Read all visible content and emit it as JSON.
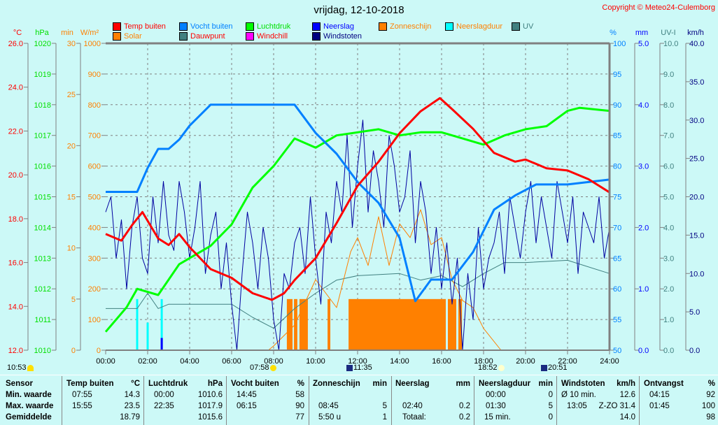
{
  "title": "vrijdag, 12-10-2018",
  "copyright": "Copyright © Meteo24-Culemborg",
  "legend": [
    {
      "label": "Temp buiten",
      "color": "#ff0000",
      "text_color": "#ff0000"
    },
    {
      "label": "Vocht buiten",
      "color": "#0080ff",
      "text_color": "#0080ff"
    },
    {
      "label": "Luchtdruk",
      "color": "#00ff00",
      "text_color": "#00e000"
    },
    {
      "label": "Neerslag",
      "color": "#0000ff",
      "text_color": "#0000ff"
    },
    {
      "label": "Zonneschijn",
      "color": "#ff8000",
      "text_color": "#ff8000"
    },
    {
      "label": "Neerslagduur",
      "color": "#00ffff",
      "text_color": "#ff8000"
    },
    {
      "label": "UV",
      "color": "#408080",
      "text_color": "#408080"
    },
    {
      "label": "Solar",
      "color": "#ff8000",
      "text_color": "#ff8000"
    },
    {
      "label": "Dauwpunt",
      "color": "#408080",
      "text_color": "#ff0000"
    },
    {
      "label": "Windchill",
      "color": "#ff00ff",
      "text_color": "#ff0000"
    },
    {
      "label": "Windstoten",
      "color": "#000080",
      "text_color": "#000080"
    }
  ],
  "axes_units": {
    "temp": "°C",
    "press": "hPa",
    "min": "min",
    "solar": "W/m²",
    "hum": "%",
    "rain": "mm",
    "uv": "UV-I",
    "wind": "km/h"
  },
  "astro": [
    {
      "time": "10:53",
      "icon": "moonset-icon"
    },
    {
      "time": "07:58",
      "icon": "sunrise-icon"
    },
    {
      "time": "11:35",
      "icon": "moonrise-icon"
    },
    {
      "time": "18:52",
      "icon": "sunset-icon"
    },
    {
      "time": "20:51",
      "icon": "moon-icon"
    }
  ],
  "chart_data": {
    "type": "line",
    "title": "vrijdag, 12-10-2018",
    "x_ticks": [
      "00:00",
      "02:00",
      "04:00",
      "06:00",
      "08:00",
      "10:00",
      "12:00",
      "14:00",
      "16:00",
      "18:00",
      "20:00",
      "22:00",
      "24:00"
    ],
    "xlim": [
      0,
      24
    ],
    "grid": true,
    "legend_placement": "top",
    "axes": {
      "temp": {
        "range": [
          12,
          26
        ],
        "ticks": [
          "12.0",
          "14.0",
          "16.0",
          "18.0",
          "20.0",
          "22.0",
          "24.0",
          "26.0"
        ]
      },
      "press": {
        "range": [
          1010,
          1020
        ],
        "ticks": [
          "1010",
          "1011",
          "1012",
          "1013",
          "1014",
          "1015",
          "1016",
          "1017",
          "1018",
          "1019",
          "1020"
        ]
      },
      "min": {
        "range": [
          0,
          30
        ],
        "ticks": [
          "0",
          "5",
          "10",
          "15",
          "20",
          "25",
          "30"
        ]
      },
      "solar": {
        "range": [
          0,
          1000
        ],
        "ticks": [
          "0",
          "100",
          "200",
          "300",
          "400",
          "500",
          "600",
          "700",
          "800",
          "900",
          "1000"
        ]
      },
      "hum": {
        "range": [
          50,
          100
        ],
        "ticks": [
          "50",
          "55",
          "60",
          "65",
          "70",
          "75",
          "80",
          "85",
          "90",
          "95",
          "100"
        ]
      },
      "rain": {
        "range": [
          0,
          5
        ],
        "ticks": [
          "0.0",
          "1.0",
          "2.0",
          "3.0",
          "4.0",
          "5.0"
        ]
      },
      "uv": {
        "range": [
          0,
          10
        ],
        "ticks": [
          "0.0",
          "1.0",
          "2.0",
          "3.0",
          "4.0",
          "5.0",
          "6.0",
          "7.0",
          "8.0",
          "9.0",
          "10.0"
        ]
      },
      "wind": {
        "range": [
          0,
          40
        ],
        "ticks": [
          "0.0",
          "5.0",
          "10.0",
          "15.0",
          "20.0",
          "25.0",
          "30.0",
          "35.0",
          "40.0"
        ]
      }
    },
    "series": [
      {
        "name": "Temp buiten",
        "axis": "temp",
        "color": "#ff0000",
        "width": 3,
        "x": [
          0,
          0.75,
          1.25,
          1.75,
          2.5,
          3,
          3.5,
          4,
          5,
          6,
          7,
          7.92,
          8.5,
          9,
          10,
          11,
          12,
          13,
          14,
          15,
          15.92,
          16.5,
          17.5,
          18.5,
          19.5,
          20,
          21,
          22,
          23,
          24
        ],
        "y": [
          17.3,
          17.0,
          17.7,
          18.3,
          17.1,
          16.8,
          17.3,
          16.7,
          15.7,
          15.3,
          14.6,
          14.3,
          14.6,
          15.2,
          16.2,
          17.8,
          19.5,
          20.6,
          21.9,
          22.9,
          23.5,
          23.0,
          22.1,
          21.0,
          20.6,
          20.7,
          20.3,
          20.2,
          19.8,
          19.2
        ]
      },
      {
        "name": "Vocht buiten",
        "axis": "hum",
        "color": "#0080ff",
        "width": 3,
        "x": [
          0,
          1.5,
          2,
          2.5,
          3,
          3.5,
          4,
          5,
          6.25,
          9,
          10,
          11,
          12,
          13,
          14,
          14.75,
          15.5,
          16.5,
          17.5,
          18.5,
          19.5,
          20.5,
          22,
          23,
          24
        ],
        "y": [
          75.8,
          75.8,
          79.7,
          82.8,
          82.8,
          84.3,
          86.6,
          90,
          90,
          90,
          85.4,
          82,
          77.4,
          74,
          68.3,
          58,
          61.5,
          61.5,
          66,
          72.9,
          75.2,
          77,
          77,
          77.4,
          77.8
        ]
      },
      {
        "name": "Luchtdruk",
        "axis": "press",
        "color": "#00ff00",
        "width": 3,
        "x": [
          0,
          1,
          1.5,
          2.5,
          3.5,
          5,
          6,
          7,
          8,
          9,
          10,
          11,
          12,
          13,
          14,
          15,
          16,
          17,
          18,
          19,
          20,
          21,
          22,
          22.58,
          24
        ],
        "y": [
          1010.6,
          1011.4,
          1012,
          1011.8,
          1012.8,
          1013.4,
          1014.1,
          1015.3,
          1016,
          1016.9,
          1016.6,
          1017,
          1017.1,
          1017.2,
          1017,
          1017.1,
          1017.1,
          1016.9,
          1016.7,
          1017,
          1017.2,
          1017.3,
          1017.8,
          1017.9,
          1017.8
        ]
      },
      {
        "name": "Dauwpunt",
        "axis": "temp",
        "color": "#408080",
        "width": 1,
        "x": [
          0,
          1.5,
          2,
          2.5,
          3,
          4,
          5,
          6,
          7,
          8,
          9,
          10,
          11,
          12,
          14,
          15,
          16,
          17,
          18,
          19,
          20,
          22,
          24
        ],
        "y": [
          13.9,
          13.9,
          14.6,
          13.9,
          14.1,
          14.1,
          14.1,
          14.1,
          13.5,
          13.0,
          13.9,
          14.6,
          15.2,
          15.4,
          15.5,
          15.2,
          15.4,
          14.9,
          15.5,
          16.0,
          16.0,
          16.1,
          15.5
        ]
      },
      {
        "name": "Solar",
        "axis": "solar",
        "color": "#ff8000",
        "width": 1,
        "x": [
          0,
          7.75,
          8,
          9,
          10,
          11,
          11.67,
          12,
          12.5,
          13,
          13.5,
          14,
          14.5,
          15,
          15.5,
          16,
          16.5,
          17,
          17.5,
          18,
          18.83,
          24
        ],
        "y": [
          0,
          0,
          14,
          82,
          230,
          139,
          321,
          367,
          276,
          435,
          276,
          412,
          367,
          458,
          344,
          367,
          230,
          162,
          139,
          71,
          0,
          0
        ]
      },
      {
        "name": "Windstoten",
        "axis": "wind",
        "color": "#0000a0",
        "width": 1,
        "x_step_hours": 0.25,
        "y": [
          18,
          20,
          12,
          17,
          8,
          16,
          20,
          12,
          10,
          20,
          14,
          22,
          15,
          13,
          22,
          18,
          12,
          16,
          22,
          10,
          15,
          18,
          8,
          14,
          6,
          0,
          10,
          18,
          14,
          8,
          16,
          12,
          4,
          0,
          10,
          8,
          14,
          16,
          10,
          20,
          12,
          6,
          18,
          14,
          22,
          18,
          28,
          16,
          24,
          30,
          18,
          26,
          22,
          16,
          28,
          24,
          18,
          20,
          26,
          14,
          22,
          18,
          10,
          16,
          8,
          14,
          6,
          12,
          0,
          10,
          4,
          16,
          8,
          12,
          14,
          18,
          10,
          20,
          16,
          12,
          18,
          22,
          14,
          20,
          16,
          12,
          22,
          18,
          14,
          20,
          10,
          18,
          16,
          14,
          20,
          12,
          16
        ]
      }
    ],
    "bars": [
      {
        "name": "Zonneschijn",
        "axis": "min",
        "color": "#ff8000",
        "value": 5,
        "intervals": [
          [
            8.63,
            8.9
          ],
          [
            8.97,
            9.13
          ],
          [
            9.23,
            9.63
          ],
          [
            10.57,
            10.7
          ],
          [
            11.57,
            16.2
          ],
          [
            16.3,
            16.7
          ],
          [
            16.8,
            16.97
          ]
        ]
      },
      {
        "name": "Neerslagduur",
        "axis": "min",
        "color": "#00ffff",
        "points": [
          [
            1.5,
            5
          ],
          [
            2.0,
            2.7
          ],
          [
            2.67,
            5
          ]
        ]
      },
      {
        "name": "Neerslag",
        "axis": "rain",
        "color": "#0000ff",
        "points": [
          [
            2.67,
            0.2
          ]
        ]
      }
    ]
  },
  "table": {
    "headers": [
      {
        "label": "Sensor",
        "unit": ""
      },
      {
        "label": "Temp buiten",
        "unit": "°C"
      },
      {
        "label": "Luchtdruk",
        "unit": "hPa"
      },
      {
        "label": "Vocht buiten",
        "unit": "%"
      },
      {
        "label": "Zonneschijn",
        "unit": "min"
      },
      {
        "label": "Neerslag",
        "unit": "mm"
      },
      {
        "label": "Neerslagduur",
        "unit": "min"
      },
      {
        "label": "Windstoten",
        "unit": "km/h"
      },
      {
        "label": "Ontvangst",
        "unit": "%"
      }
    ],
    "rows": [
      {
        "label": "Min. waarde",
        "cells": [
          [
            "07:55",
            "14.3"
          ],
          [
            "00:00",
            "1010.6"
          ],
          [
            "14:45",
            "58"
          ],
          [
            "",
            ""
          ],
          [
            "",
            ""
          ],
          [
            "00:00",
            "0"
          ],
          [
            "Ø 10 min.",
            "12.6"
          ],
          [
            "04:15",
            "92"
          ]
        ]
      },
      {
        "label": "Max. waarde",
        "cells": [
          [
            "15:55",
            "23.5"
          ],
          [
            "22:35",
            "1017.9"
          ],
          [
            "06:15",
            "90"
          ],
          [
            "08:45",
            "5"
          ],
          [
            "02:40",
            "0.2"
          ],
          [
            "01:30",
            "5"
          ],
          [
            "13:05",
            "Z-ZO 31.4"
          ],
          [
            "01:45",
            "100"
          ]
        ]
      },
      {
        "label": "Gemiddelde",
        "cells": [
          [
            "",
            "18.79"
          ],
          [
            "",
            "1015.6"
          ],
          [
            "",
            "77"
          ],
          [
            "5:50 u",
            "1"
          ],
          [
            "Totaal:",
            "0.2"
          ],
          [
            "15 min.",
            "0"
          ],
          [
            "",
            "14.0"
          ],
          [
            "",
            "98"
          ]
        ]
      }
    ]
  }
}
